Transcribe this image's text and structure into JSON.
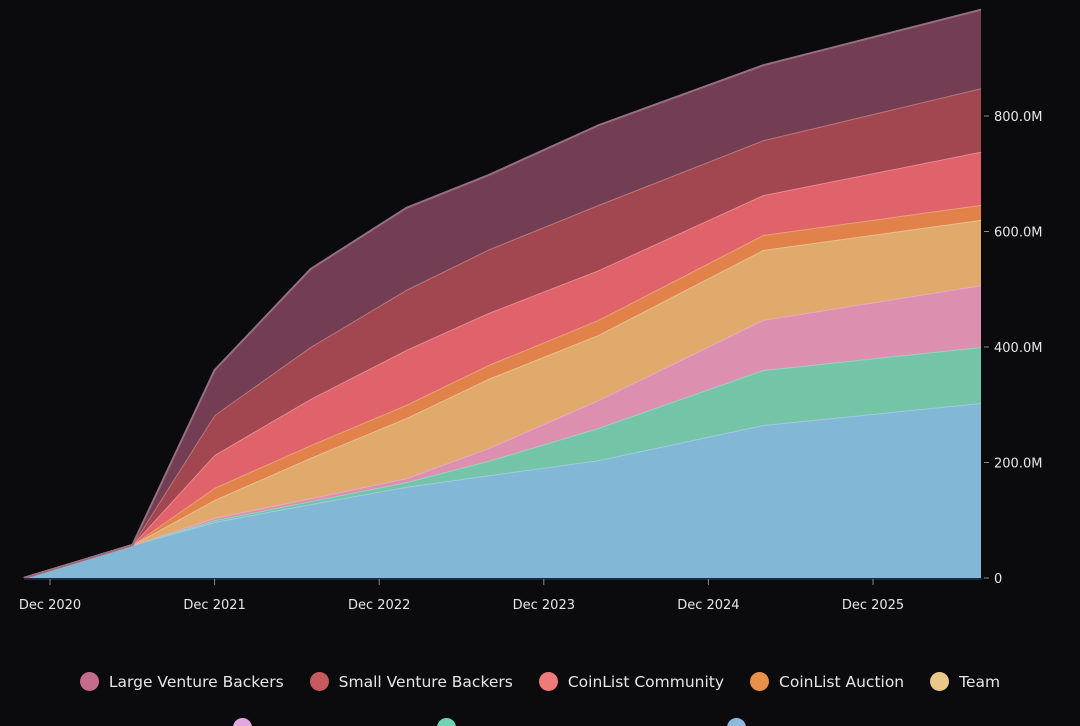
{
  "chart_data": {
    "type": "area",
    "stacked": true,
    "title": "",
    "xlabel": "",
    "ylabel": "",
    "x": [
      "Oct 2020",
      "Jun 2021",
      "Dec 2021",
      "Jul 2022",
      "Feb 2023",
      "Aug 2023",
      "Apr 2024",
      "Apr 2025",
      "Jul 2026"
    ],
    "x_tick_labels": [
      "Dec 2020",
      "Dec 2021",
      "Dec 2022",
      "Dec 2023",
      "Dec 2024",
      "Dec 2025"
    ],
    "y_tick_labels": [
      "0",
      "200.0M",
      "400.0M",
      "600.0M",
      "800.0M"
    ],
    "y_ticks": [
      0,
      200,
      400,
      600,
      800
    ],
    "ylim": [
      0,
      1000
    ],
    "y_unit": "M",
    "y_axis_position": "right",
    "grid": false,
    "legend_position": "bottom",
    "series": [
      {
        "name": "",
        "color": "#82b8d6",
        "values": [
          0,
          57,
          97,
          128,
          158,
          178,
          204,
          265,
          303
        ]
      },
      {
        "name": "",
        "color": "#74c4a8",
        "values": [
          0,
          0,
          3,
          5,
          8,
          25,
          56,
          95,
          97
        ]
      },
      {
        "name": "",
        "color": "#dd8fb0",
        "values": [
          0,
          0,
          4,
          5,
          7,
          22,
          48,
          87,
          107
        ]
      },
      {
        "name": "Team",
        "color": "#e0aa6c",
        "values": [
          0,
          0,
          31,
          70,
          104,
          120,
          113,
          121,
          113
        ]
      },
      {
        "name": "CoinList Auction",
        "color": "#e0824a",
        "values": [
          0,
          0,
          21,
          22,
          23,
          24,
          26,
          26,
          26
        ]
      },
      {
        "name": "CoinList Community",
        "color": "#e0636b",
        "values": [
          0,
          0,
          57,
          80,
          95,
          90,
          86,
          69,
          92
        ]
      },
      {
        "name": "Small Venture Backers",
        "color": "#a2474f",
        "values": [
          0,
          0,
          69,
          90,
          104,
          110,
          113,
          95,
          110
        ]
      },
      {
        "name": "Large Venture Backers",
        "color": "#733e54",
        "values": [
          0,
          0,
          78,
          135,
          142,
          129,
          138,
          130,
          136
        ]
      }
    ]
  },
  "legend": {
    "row1": [
      {
        "label": "Large Venture Backers",
        "color": "#c56b8c"
      },
      {
        "label": "Small Venture Backers",
        "color": "#c75a5e"
      },
      {
        "label": "CoinList Community",
        "color": "#f07a7a"
      },
      {
        "label": "CoinList Auction",
        "color": "#e8914a"
      },
      {
        "label": "Team",
        "color": "#e9c98a"
      }
    ],
    "row2": [
      {
        "label": "",
        "color": "#e2a6e0"
      },
      {
        "label": "",
        "color": "#6fd4b4"
      },
      {
        "label": "",
        "color": "#8fb8dd"
      }
    ]
  }
}
